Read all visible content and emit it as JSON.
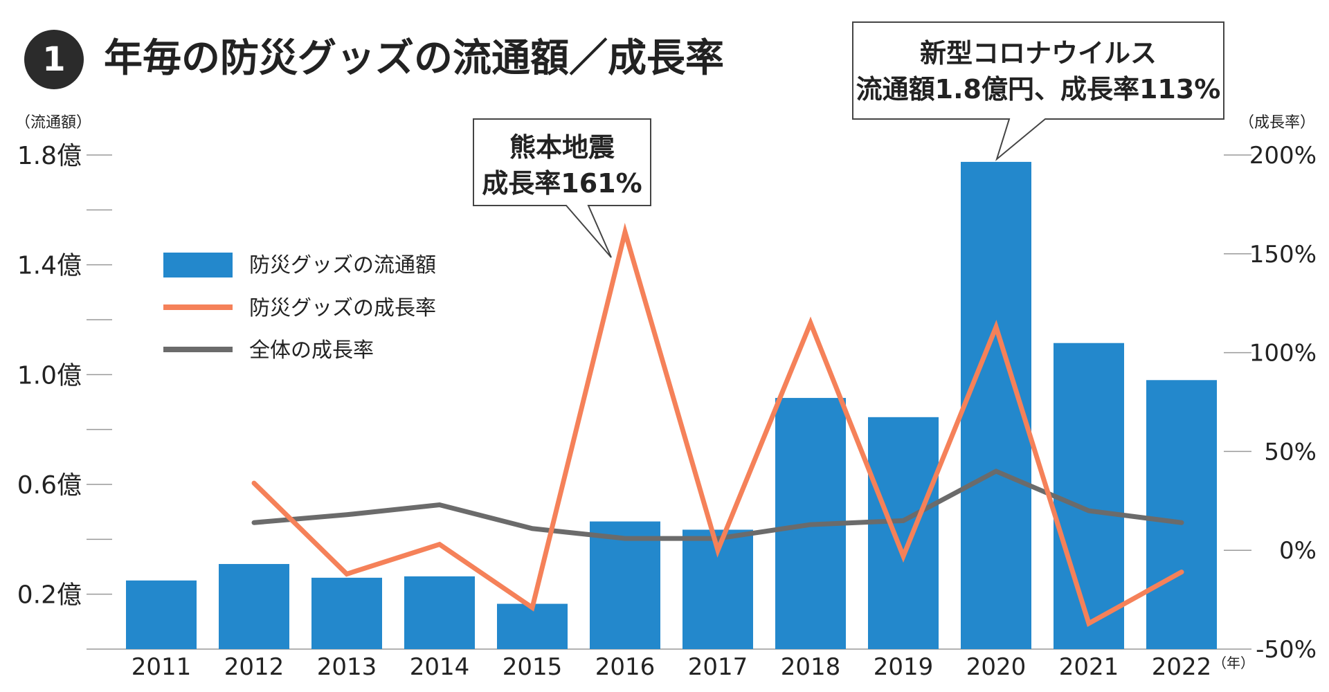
{
  "page": {
    "badge_number": "1",
    "title": "年毎の防災グッズの流通額／成長率"
  },
  "colors": {
    "bar": "#2388cc",
    "growth_line": "#f58159",
    "overall_line": "#6b6b6b",
    "badge_bg": "#2b2b2b",
    "tick": "#999999",
    "text": "#222222"
  },
  "chart_data": {
    "type": "bar",
    "title": "年毎の防災グッズの流通額／成長率",
    "categories": [
      "2011",
      "2012",
      "2013",
      "2014",
      "2015",
      "2016",
      "2017",
      "2018",
      "2019",
      "2020",
      "2021",
      "2022"
    ],
    "x_unit_label": "（年）",
    "left_axis": {
      "label": "（流通額）",
      "range": [
        0,
        1.8
      ],
      "ticks": [
        0.2,
        0.6,
        1.0,
        1.4,
        1.8
      ],
      "tick_labels": [
        "0.2億",
        "0.6億",
        "1.0億",
        "1.4億",
        "1.8億"
      ],
      "minor_ticks": [
        0.0,
        0.4,
        0.8,
        1.2,
        1.6
      ]
    },
    "right_axis": {
      "label": "（成長率）",
      "range": [
        -50,
        200
      ],
      "ticks": [
        -50,
        0,
        50,
        100,
        150,
        200
      ],
      "tick_labels": [
        "-50%",
        "0%",
        "50%",
        "100%",
        "150%",
        "200%"
      ]
    },
    "series": [
      {
        "name": "防災グッズの流通額",
        "type": "bar",
        "axis": "left",
        "values": [
          0.25,
          0.31,
          0.26,
          0.265,
          0.165,
          0.465,
          0.435,
          0.915,
          0.845,
          1.775,
          1.115,
          0.98
        ]
      },
      {
        "name": "防災グッズの成長率",
        "type": "line",
        "axis": "right",
        "values": [
          null,
          34,
          -12,
          3,
          -29,
          161,
          0,
          115,
          -3,
          113,
          -37,
          -11
        ]
      },
      {
        "name": "全体の成長率",
        "type": "line",
        "axis": "right",
        "values": [
          null,
          14,
          18,
          23,
          11,
          6,
          6,
          13,
          15,
          40,
          20,
          14
        ]
      }
    ],
    "annotations": [
      {
        "category": "2016",
        "lines": [
          "熊本地震",
          "成長率161%"
        ]
      },
      {
        "category": "2020",
        "lines": [
          "新型コロナウイルス",
          "流通額1.8億円、成長率113%"
        ]
      }
    ]
  }
}
